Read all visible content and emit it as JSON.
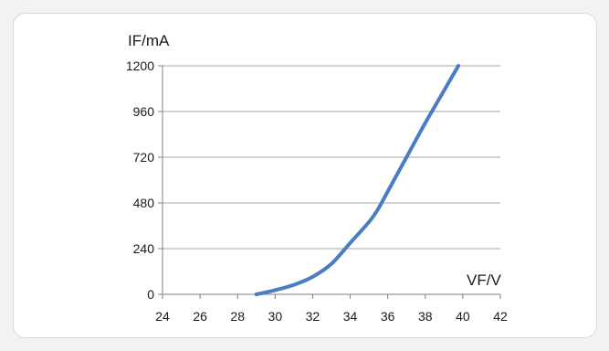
{
  "chart_data": {
    "type": "line",
    "title": "",
    "xlabel": "VF/V",
    "ylabel": "IF/mA",
    "xlim": [
      24,
      42
    ],
    "ylim": [
      0,
      1200
    ],
    "x_ticks": [
      "24",
      "26",
      "28",
      "30",
      "32",
      "34",
      "36",
      "38",
      "40",
      "42"
    ],
    "y_ticks": [
      "0",
      "240",
      "480",
      "720",
      "960",
      "1200"
    ],
    "grid": "horizontal",
    "series": [
      {
        "color": "#4a7cc1",
        "x": [
          29.0,
          30.0,
          31.0,
          32.0,
          33.0,
          34.0,
          35.0,
          35.5,
          36.0,
          37.0,
          38.0,
          39.0,
          40.0
        ],
        "y": [
          0,
          22,
          50,
          92,
          160,
          270,
          380,
          450,
          540,
          720,
          900,
          1070,
          1240
        ]
      }
    ]
  }
}
